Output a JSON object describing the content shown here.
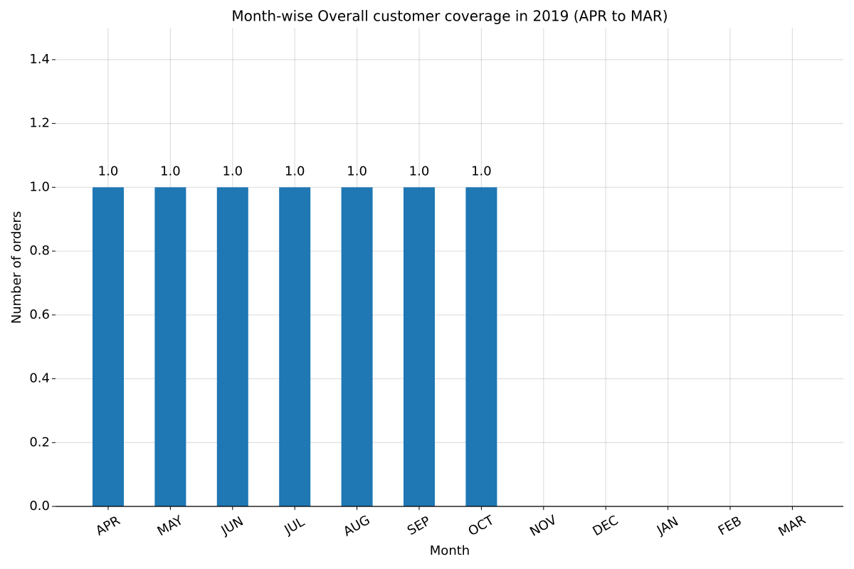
{
  "chart_data": {
    "type": "bar",
    "title": "Month-wise Overall customer coverage in 2019 (APR to MAR)",
    "x_label": "Month",
    "y_label": "Number of orders",
    "categories": [
      "APR",
      "MAY",
      "JUN",
      "JUL",
      "AUG",
      "SEP",
      "OCT",
      "NOV",
      "DEC",
      "JAN",
      "FEB",
      "MAR"
    ],
    "values": [
      1,
      1,
      1,
      1,
      1,
      1,
      1,
      null,
      null,
      null,
      null,
      null
    ],
    "value_labels": [
      "1.0",
      "1.0",
      "1.0",
      "1.0",
      "1.0",
      "1.0",
      "1.0",
      null,
      null,
      null,
      null,
      null
    ],
    "color": "#1f77b4",
    "ylim": [
      0,
      1.5
    ],
    "yticks": [
      {
        "value": 0,
        "label": "0.0"
      },
      0.2,
      0.4,
      0.6,
      0.8,
      {
        "value": 1,
        "label": "1.0"
      },
      1.2,
      1.4
    ],
    "grid": true
  }
}
